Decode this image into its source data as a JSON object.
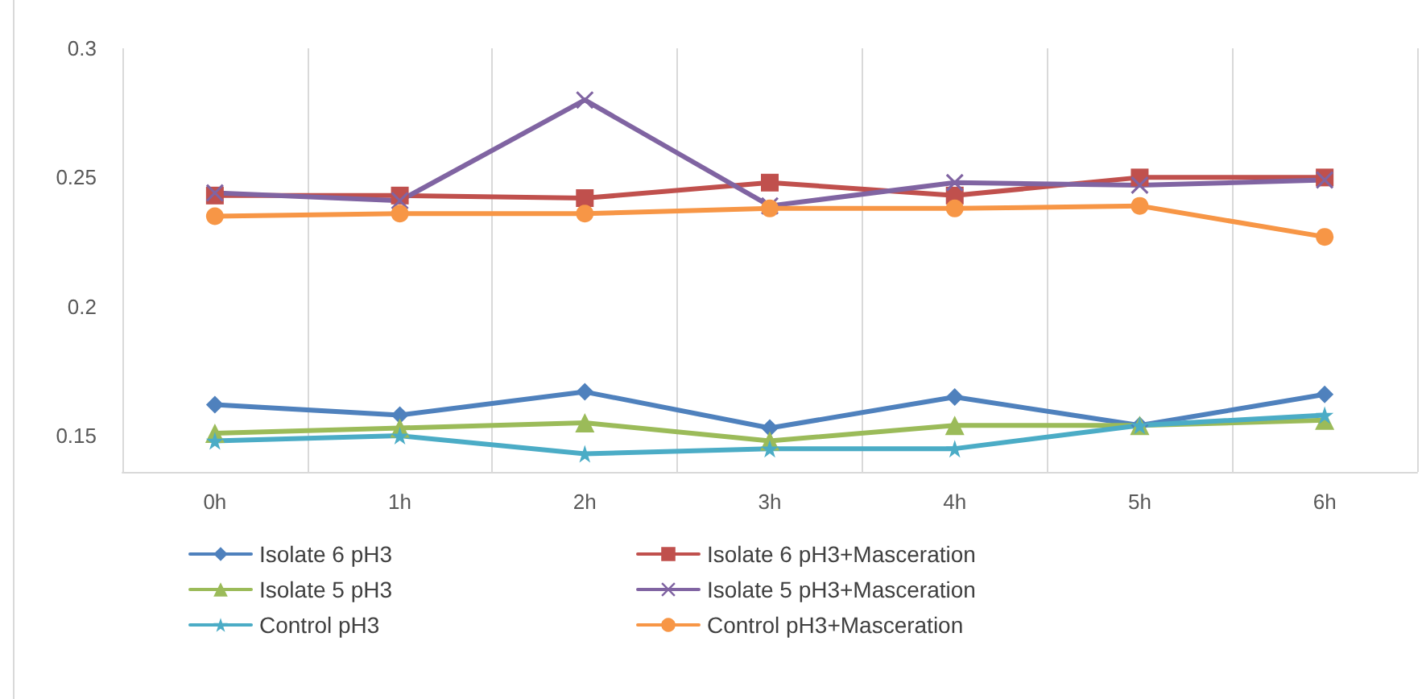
{
  "chart_data": {
    "type": "line",
    "categories": [
      "0h",
      "1h",
      "2h",
      "3h",
      "4h",
      "5h",
      "6h"
    ],
    "series": [
      {
        "name": "Isolate 6 pH3",
        "color": "#4f81bd",
        "marker": "diamond",
        "values": [
          0.162,
          0.158,
          0.167,
          0.153,
          0.165,
          0.154,
          0.166
        ]
      },
      {
        "name": "Isolate 6 pH3+Masceration",
        "color": "#c0504d",
        "marker": "square",
        "values": [
          0.243,
          0.243,
          0.242,
          0.248,
          0.243,
          0.25,
          0.25
        ]
      },
      {
        "name": "Isolate 5 pH3",
        "color": "#9bbb59",
        "marker": "triangle",
        "values": [
          0.151,
          0.153,
          0.155,
          0.148,
          0.154,
          0.154,
          0.156
        ]
      },
      {
        "name": "Isolate 5 pH3+Masceration",
        "color": "#8064a2",
        "marker": "cross",
        "values": [
          0.244,
          0.241,
          0.28,
          0.239,
          0.248,
          0.247,
          0.249
        ]
      },
      {
        "name": "Control pH3",
        "color": "#4bacc6",
        "marker": "star",
        "values": [
          0.148,
          0.15,
          0.143,
          0.145,
          0.145,
          0.154,
          0.158
        ]
      },
      {
        "name": "Control pH3+Masceration",
        "color": "#f79646",
        "marker": "circle",
        "values": [
          0.235,
          0.236,
          0.236,
          0.238,
          0.238,
          0.239,
          0.227
        ]
      }
    ],
    "ylim": [
      0.136,
      0.3
    ],
    "yticks": [
      0.15,
      0.2,
      0.25,
      0.3
    ],
    "grid": "x",
    "legend": "bottom",
    "line_style": "solid"
  }
}
